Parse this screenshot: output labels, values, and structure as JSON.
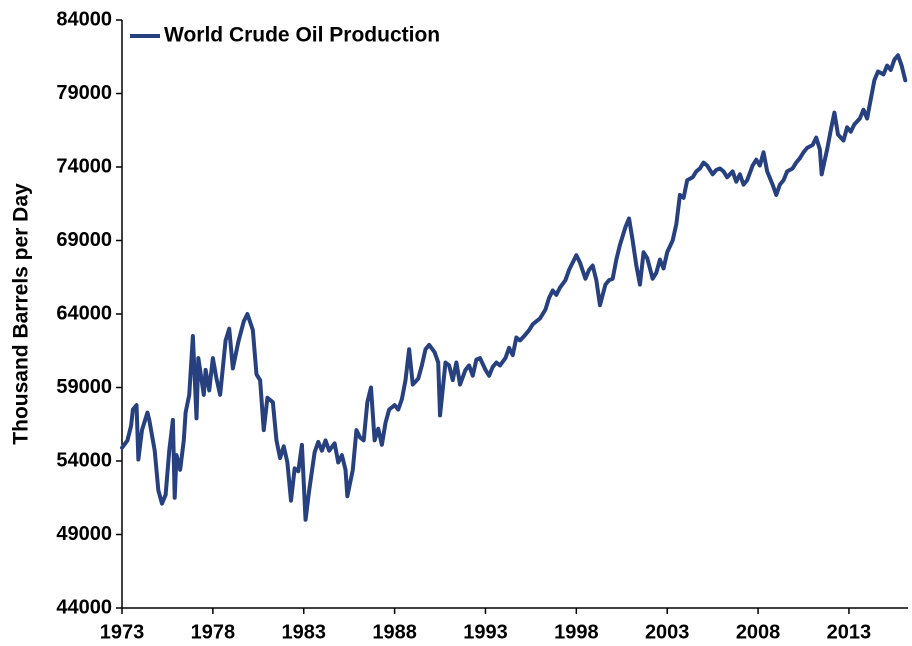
{
  "chart_data": {
    "type": "line",
    "ylabel": "Thousand Barrels per Day",
    "xlim": [
      1973,
      2016.25
    ],
    "xticks": [
      1973,
      1978,
      1983,
      1988,
      1993,
      1998,
      2003,
      2008,
      2013
    ],
    "ylim": [
      44000,
      84000
    ],
    "yticks": [
      44000,
      49000,
      54000,
      59000,
      64000,
      69000,
      74000,
      79000,
      84000
    ],
    "grid": false,
    "legend": "upper left",
    "series": [
      {
        "name": "World Crude Oil Production",
        "color": "#27407f",
        "x": [
          1973.0,
          1973.3,
          1973.5,
          1973.6,
          1973.8,
          1973.9,
          1974.1,
          1974.4,
          1974.5,
          1974.8,
          1975.0,
          1975.2,
          1975.4,
          1975.6,
          1975.8,
          1975.9,
          1976.0,
          1976.2,
          1976.4,
          1976.5,
          1976.7,
          1976.9,
          1977.1,
          1977.2,
          1977.5,
          1977.6,
          1977.8,
          1978.0,
          1978.2,
          1978.4,
          1978.7,
          1978.9,
          1979.1,
          1979.4,
          1979.7,
          1979.9,
          1980.2,
          1980.4,
          1980.6,
          1980.8,
          1981.0,
          1981.3,
          1981.5,
          1981.7,
          1981.9,
          1982.1,
          1982.3,
          1982.5,
          1982.7,
          1982.9,
          1983.1,
          1983.3,
          1983.6,
          1983.8,
          1984.0,
          1984.2,
          1984.4,
          1984.7,
          1984.9,
          1985.1,
          1985.3,
          1985.4,
          1985.7,
          1985.9,
          1986.1,
          1986.3,
          1986.5,
          1986.7,
          1986.9,
          1987.1,
          1987.3,
          1987.5,
          1987.7,
          1988.0,
          1988.2,
          1988.4,
          1988.6,
          1988.8,
          1989.0,
          1989.3,
          1989.5,
          1989.7,
          1989.9,
          1990.2,
          1990.4,
          1990.5,
          1990.8,
          1991.0,
          1991.2,
          1991.4,
          1991.6,
          1991.9,
          1992.1,
          1992.3,
          1992.5,
          1992.7,
          1993.0,
          1993.2,
          1993.4,
          1993.6,
          1993.8,
          1994.1,
          1994.3,
          1994.5,
          1994.7,
          1994.9,
          1995.2,
          1995.4,
          1995.6,
          1995.8,
          1996.0,
          1996.3,
          1996.5,
          1996.7,
          1996.9,
          1997.1,
          1997.4,
          1997.6,
          1997.8,
          1998.0,
          1998.2,
          1998.5,
          1998.7,
          1998.9,
          1999.1,
          1999.3,
          1999.6,
          1999.8,
          2000.0,
          2000.2,
          2000.4,
          2000.7,
          2000.9,
          2001.1,
          2001.3,
          2001.5,
          2001.7,
          2001.9,
          2002.2,
          2002.4,
          2002.6,
          2002.8,
          2003.0,
          2003.3,
          2003.5,
          2003.7,
          2003.9,
          2004.1,
          2004.4,
          2004.6,
          2004.8,
          2005.0,
          2005.2,
          2005.5,
          2005.7,
          2005.9,
          2006.1,
          2006.3,
          2006.6,
          2006.8,
          2007.0,
          2007.2,
          2007.4,
          2007.7,
          2007.9,
          2008.1,
          2008.3,
          2008.5,
          2008.8,
          2009.0,
          2009.2,
          2009.4,
          2009.6,
          2009.9,
          2010.1,
          2010.3,
          2010.5,
          2010.7,
          2011.0,
          2011.2,
          2011.4,
          2011.5,
          2011.8,
          2012.0,
          2012.2,
          2012.4,
          2012.7,
          2012.9,
          2013.1,
          2013.3,
          2013.6,
          2013.8,
          2014.0,
          2014.2,
          2014.4,
          2014.6,
          2014.9,
          2015.1,
          2015.3,
          2015.5,
          2015.7,
          2015.9,
          2016.1
        ],
        "values": [
          54900,
          55400,
          56400,
          57500,
          57800,
          54100,
          56100,
          57300,
          56800,
          54700,
          52000,
          51100,
          51700,
          54700,
          56800,
          51500,
          54400,
          53400,
          55400,
          57300,
          58500,
          62500,
          56900,
          61000,
          58500,
          60200,
          58800,
          61000,
          59600,
          58500,
          62200,
          63000,
          60300,
          62100,
          63500,
          64000,
          62900,
          59900,
          59500,
          56100,
          58300,
          58000,
          55400,
          54200,
          55000,
          53900,
          51300,
          53500,
          53300,
          55100,
          50000,
          52000,
          54600,
          55300,
          54700,
          55400,
          54700,
          55200,
          53900,
          54400,
          53400,
          51600,
          53400,
          56100,
          55600,
          55400,
          58000,
          59000,
          55400,
          56200,
          55100,
          56600,
          57500,
          57800,
          57500,
          58200,
          59500,
          61600,
          59200,
          59600,
          60500,
          61600,
          61900,
          61400,
          60700,
          57100,
          60700,
          60500,
          59500,
          60700,
          59200,
          60200,
          60500,
          59800,
          60900,
          61000,
          60200,
          59800,
          60400,
          60700,
          60500,
          61000,
          61700,
          61200,
          62400,
          62200,
          62600,
          62900,
          63300,
          63500,
          63700,
          64300,
          65100,
          65600,
          65300,
          65800,
          66300,
          67000,
          67500,
          68000,
          67500,
          66400,
          67000,
          67300,
          66300,
          64600,
          66000,
          66300,
          66400,
          67700,
          68700,
          69900,
          70500,
          69000,
          67300,
          66000,
          68200,
          67800,
          66400,
          66800,
          67700,
          67100,
          68200,
          69000,
          70100,
          72100,
          71900,
          73100,
          73300,
          73700,
          73900,
          74300,
          74100,
          73500,
          73800,
          73900,
          73700,
          73300,
          73700,
          73000,
          73500,
          72800,
          73100,
          74100,
          74500,
          74100,
          75000,
          73700,
          72800,
          72100,
          72800,
          73100,
          73700,
          73900,
          74300,
          74600,
          75000,
          75300,
          75500,
          76000,
          75200,
          73500,
          75200,
          76500,
          77700,
          76200,
          75800,
          76700,
          76400,
          76900,
          77300,
          77900,
          77300,
          78600,
          79900,
          80500,
          80300,
          80900,
          80600,
          81300,
          81600,
          80900,
          79900
        ]
      }
    ]
  }
}
